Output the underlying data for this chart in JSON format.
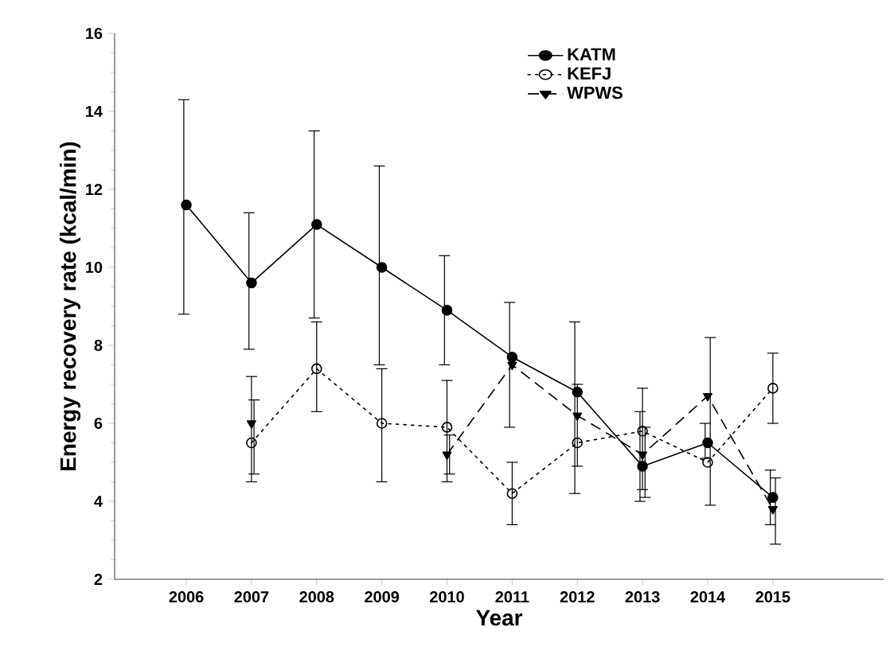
{
  "chart_data": {
    "type": "line",
    "xlabel": "Year",
    "ylabel": "Energy recovery rate (kcal/min)",
    "categories": [
      "2006",
      "2007",
      "2008",
      "2009",
      "2010",
      "2011",
      "2012",
      "2013",
      "2014",
      "2015"
    ],
    "ylim": [
      2,
      16
    ],
    "yticks": [
      2,
      4,
      6,
      8,
      10,
      12,
      14,
      16
    ],
    "legend": "top right",
    "series": [
      {
        "name": "KATM",
        "color": "#000000",
        "marker": "circle",
        "line_style": "solid",
        "values": [
          11.6,
          9.6,
          11.1,
          10.0,
          8.9,
          7.7,
          6.8,
          4.9,
          5.5,
          4.1
        ],
        "errors": [
          [
            8.8,
            14.3
          ],
          [
            7.9,
            11.4
          ],
          [
            8.7,
            13.5
          ],
          [
            7.5,
            12.6
          ],
          [
            7.5,
            10.3
          ],
          [
            5.9,
            9.1
          ],
          [
            4.2,
            8.6
          ],
          [
            4.0,
            6.3
          ],
          [
            5.1,
            6.0
          ],
          [
            3.4,
            4.8
          ]
        ]
      },
      {
        "name": "KEFJ",
        "color": "#000000",
        "marker": "circle_open",
        "line_style": "dotted",
        "values": [
          null,
          5.5,
          7.4,
          6.0,
          5.9,
          4.2,
          5.5,
          5.8,
          5.0,
          6.9
        ],
        "errors": [
          null,
          [
            4.5,
            7.2
          ],
          [
            6.3,
            8.6
          ],
          [
            4.5,
            7.4
          ],
          [
            4.5,
            7.1
          ],
          [
            3.4,
            5.0
          ],
          [
            4.9,
            7.0
          ],
          [
            4.3,
            6.9
          ],
          null,
          [
            6.0,
            7.8
          ]
        ]
      },
      {
        "name": "WPWS",
        "color": "#000000",
        "marker": "triangle_down",
        "line_style": "dashed",
        "values": [
          null,
          6.0,
          null,
          null,
          5.2,
          7.5,
          6.2,
          5.2,
          6.7,
          3.8
        ],
        "errors": [
          null,
          [
            4.7,
            6.6
          ],
          null,
          null,
          [
            4.7,
            5.7
          ],
          null,
          null,
          [
            4.1,
            5.9
          ],
          [
            3.9,
            8.2
          ],
          [
            2.9,
            4.6
          ]
        ]
      }
    ]
  }
}
